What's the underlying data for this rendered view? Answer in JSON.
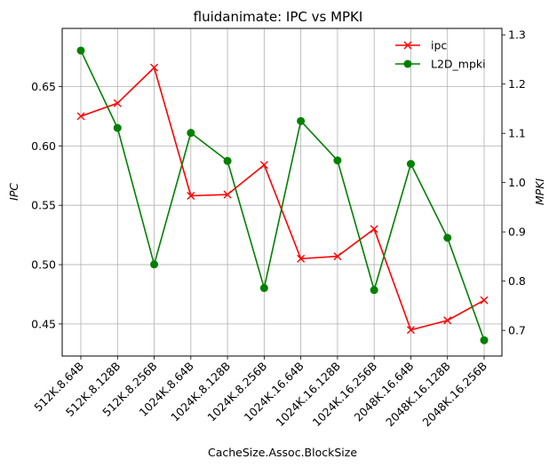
{
  "chart_data": {
    "type": "line",
    "title": "fluidanimate: IPC vs MPKI",
    "xlabel": "CacheSize.Assoc.BlockSize",
    "ylabel_left": "IPC",
    "ylabel_right": "MPKI",
    "categories": [
      "512K.8.64B",
      "512K.8.128B",
      "512K.8.256B",
      "1024K.8.64B",
      "1024K.8.128B",
      "1024K.8.256B",
      "1024K.16.64B",
      "1024K.16.128B",
      "1024K.16.256B",
      "2048K.16.64B",
      "2048K.16.128B",
      "2048K.16.256B"
    ],
    "ylim_left": [
      0.423,
      0.699
    ],
    "yticks_left": [
      "0.45",
      "0.50",
      "0.55",
      "0.60",
      "0.65"
    ],
    "ylim_right": [
      0.648,
      1.313
    ],
    "yticks_right": [
      "0.7",
      "0.8",
      "0.9",
      "1.0",
      "1.1",
      "1.2",
      "1.3"
    ],
    "grid": true,
    "legend_position": "top-right",
    "series": [
      {
        "name": "ipc",
        "axis": "left",
        "color": "#ff0000",
        "marker": "x",
        "values": [
          0.625,
          0.636,
          0.666,
          0.558,
          0.559,
          0.584,
          0.505,
          0.507,
          0.53,
          0.445,
          0.453,
          0.47
        ]
      },
      {
        "name": "L2D_mpki",
        "axis": "right",
        "color": "#008000",
        "marker": "o",
        "values": [
          1.268,
          1.111,
          0.834,
          1.101,
          1.044,
          0.786,
          1.125,
          1.045,
          0.782,
          1.038,
          0.888,
          0.68
        ]
      }
    ]
  }
}
